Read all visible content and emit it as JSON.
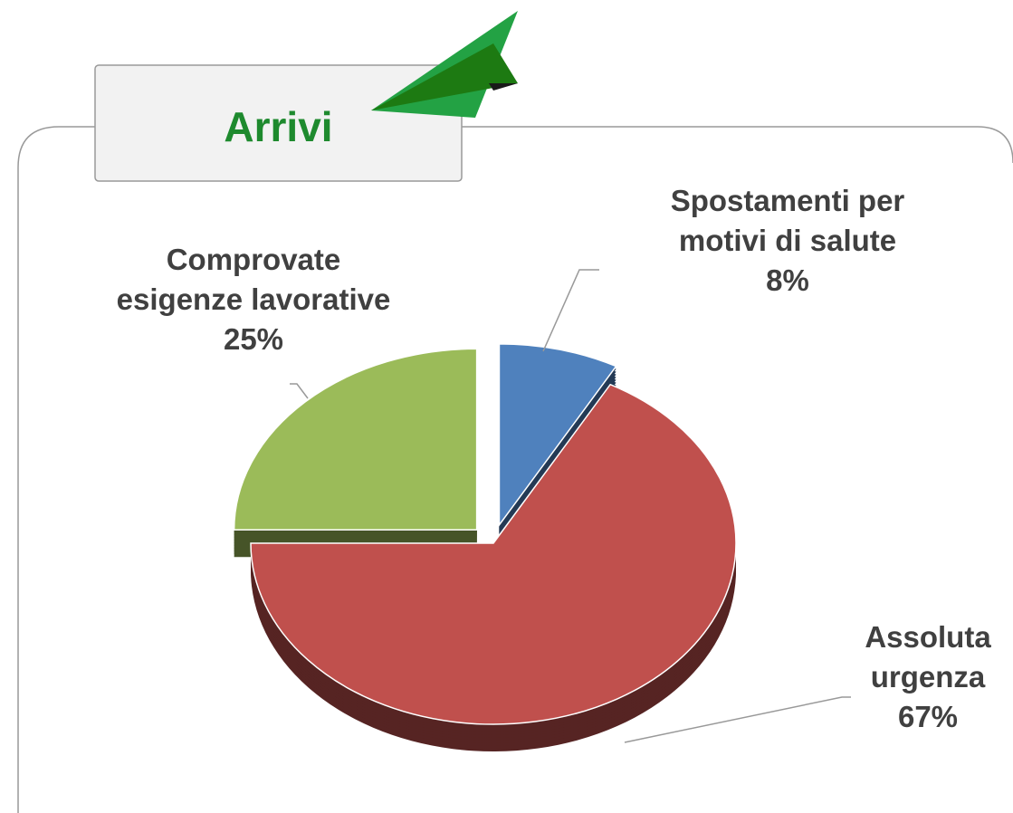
{
  "chart_data": {
    "type": "pie",
    "title": "Arrivi",
    "categories": [
      "Spostamenti per\nmotivi di salute",
      "Assoluta\nurgenza",
      "Comprovate\nesigenze lavorative"
    ],
    "values": [
      8,
      67,
      25
    ],
    "value_labels": [
      "8%",
      "67%",
      "25%"
    ],
    "colors": [
      "#4f81bd",
      "#c0504d",
      "#9bbb59"
    ],
    "start_angle": 0,
    "exploded": [
      true,
      false,
      true
    ]
  }
}
